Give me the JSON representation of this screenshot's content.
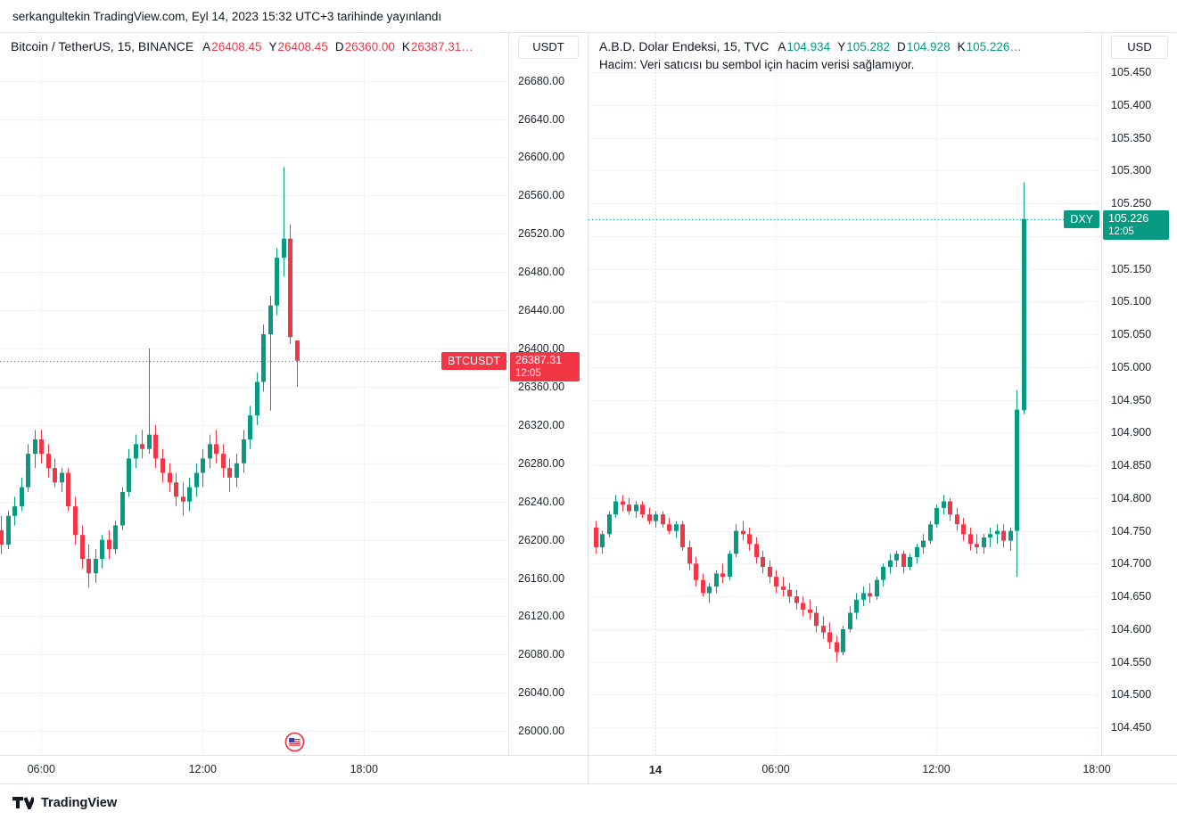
{
  "header": {
    "publish_info": "serkangultekin TradingView.com, Eyl 14, 2023 15:32 UTC+3 tarihinde yayınlandı"
  },
  "footer": {
    "brand": "TradingView"
  },
  "colors": {
    "up": "#089981",
    "down": "#f23645",
    "grid": "#f0f3fa",
    "session_grid": "#e0e3eb",
    "border": "#e0e3eb",
    "text": "#131722"
  },
  "chart_data": [
    {
      "type": "candlestick",
      "title": "Bitcoin / TetherUS, 15, BINANCE",
      "symbol": "BTCUSDT",
      "exchange": "BINANCE",
      "interval_minutes": 15,
      "currency": "USDT",
      "accent": "#f23645",
      "ohlc_legend": [
        {
          "label": "A",
          "value": "26408.45"
        },
        {
          "label": "Y",
          "value": "26408.45"
        },
        {
          "label": "D",
          "value": "26360.00"
        },
        {
          "label": "K",
          "value": "26387.31…"
        }
      ],
      "last": {
        "open": 26408.45,
        "high": 26408.45,
        "low": 26360.0,
        "close": 26387.31
      },
      "last_price": 26387.31,
      "price_label": "26387.31",
      "countdown": "12:05",
      "ylim": [
        25975,
        26730
      ],
      "y_axis": {
        "start": 26680,
        "end": 26000,
        "step": 40,
        "decimals": 2
      },
      "x_ticks": [
        {
          "label": "06:00",
          "slot": 6
        },
        {
          "label": "12:00",
          "slot": 30
        },
        {
          "label": "18:00",
          "slot": 54
        }
      ],
      "start_time": "04:30",
      "step_minutes": 15,
      "grid": true,
      "candles": [
        [
          26210,
          26225,
          26185,
          26195
        ],
        [
          26195,
          26230,
          26190,
          26225
        ],
        [
          26225,
          26245,
          26215,
          26235
        ],
        [
          26235,
          26265,
          26230,
          26255
        ],
        [
          26255,
          26300,
          26250,
          26290
        ],
        [
          26290,
          26315,
          26275,
          26305
        ],
        [
          26305,
          26315,
          26280,
          26290
        ],
        [
          26290,
          26300,
          26265,
          26275
        ],
        [
          26275,
          26285,
          26255,
          26260
        ],
        [
          26260,
          26275,
          26250,
          26270
        ],
        [
          26270,
          26275,
          26230,
          26235
        ],
        [
          26235,
          26245,
          26195,
          26205
        ],
        [
          26205,
          26215,
          26170,
          26180
        ],
        [
          26180,
          26195,
          26150,
          26165
        ],
        [
          26165,
          26190,
          26155,
          26180
        ],
        [
          26180,
          26205,
          26170,
          26200
        ],
        [
          26200,
          26210,
          26180,
          26190
        ],
        [
          26190,
          26220,
          26185,
          26215
        ],
        [
          26215,
          26255,
          26210,
          26250
        ],
        [
          26250,
          26295,
          26245,
          26285
        ],
        [
          26285,
          26310,
          26275,
          26300
        ],
        [
          26300,
          26315,
          26285,
          26295
        ],
        [
          26295,
          26400,
          26290,
          26310
        ],
        [
          26310,
          26320,
          26275,
          26285
        ],
        [
          26285,
          26295,
          26260,
          26270
        ],
        [
          26270,
          26280,
          26250,
          26260
        ],
        [
          26260,
          26270,
          26235,
          26245
        ],
        [
          26245,
          26260,
          26225,
          26240
        ],
        [
          26240,
          26265,
          26230,
          26255
        ],
        [
          26255,
          26280,
          26245,
          26270
        ],
        [
          26270,
          26295,
          26255,
          26285
        ],
        [
          26285,
          26310,
          26275,
          26300
        ],
        [
          26300,
          26315,
          26280,
          26290
        ],
        [
          26290,
          26300,
          26265,
          26275
        ],
        [
          26275,
          26285,
          26250,
          26265
        ],
        [
          26265,
          26290,
          26255,
          26280
        ],
        [
          26280,
          26315,
          26270,
          26305
        ],
        [
          26305,
          26340,
          26295,
          26330
        ],
        [
          26330,
          26375,
          26320,
          26365
        ],
        [
          26365,
          26425,
          26355,
          26415
        ],
        [
          26415,
          26455,
          26335,
          26445
        ],
        [
          26445,
          26505,
          26435,
          26495
        ],
        [
          26495,
          26590,
          26475,
          26515
        ],
        [
          26515,
          26530,
          26405,
          26412
        ],
        [
          26408.45,
          26408.45,
          26360.0,
          26387.31
        ]
      ]
    },
    {
      "type": "candlestick",
      "title": "A.B.D. Dolar Endeksi, 15, TVC",
      "symbol": "DXY",
      "exchange": "TVC",
      "interval_minutes": 15,
      "currency": "USD",
      "accent": "#089981",
      "ohlc_legend": [
        {
          "label": "A",
          "value": "104.934"
        },
        {
          "label": "Y",
          "value": "105.282"
        },
        {
          "label": "D",
          "value": "104.928"
        },
        {
          "label": "K",
          "value": "105.226…"
        }
      ],
      "volume_note": "Hacim: Veri satıcısı bu sembol için hacim verisi sağlamıyor.",
      "last": {
        "open": 104.934,
        "high": 105.282,
        "low": 104.928,
        "close": 105.226
      },
      "last_price": 105.226,
      "price_label": "105.226",
      "countdown": "12:05",
      "ylim": [
        104.408,
        105.51
      ],
      "y_axis": {
        "start": 105.45,
        "end": 104.45,
        "step": 0.05,
        "decimals": 3
      },
      "x_ticks": [
        {
          "label": "14",
          "slot": 9,
          "major": true
        },
        {
          "label": "06:00",
          "slot": 27
        },
        {
          "label": "12:00",
          "slot": 51
        },
        {
          "label": "18:00",
          "slot": 75
        }
      ],
      "start_time": "23:15 (Eyl 13)",
      "step_minutes": 15,
      "grid": true,
      "candles": [
        [
          104.755,
          104.765,
          104.715,
          104.725
        ],
        [
          104.725,
          104.75,
          104.715,
          104.745
        ],
        [
          104.745,
          104.78,
          104.74,
          104.775
        ],
        [
          104.775,
          104.805,
          104.77,
          104.795
        ],
        [
          104.795,
          104.805,
          104.78,
          104.79
        ],
        [
          104.79,
          104.8,
          104.775,
          104.78
        ],
        [
          104.78,
          104.795,
          104.77,
          104.79
        ],
        [
          104.79,
          104.795,
          104.77,
          104.775
        ],
        [
          104.775,
          104.785,
          104.76,
          104.765
        ],
        [
          104.765,
          104.78,
          104.755,
          104.775
        ],
        [
          104.775,
          104.78,
          104.755,
          104.76
        ],
        [
          104.76,
          104.77,
          104.745,
          104.75
        ],
        [
          104.75,
          104.765,
          104.74,
          104.76
        ],
        [
          104.76,
          104.765,
          104.72,
          104.725
        ],
        [
          104.725,
          104.735,
          104.69,
          104.7
        ],
        [
          104.7,
          104.71,
          104.665,
          104.675
        ],
        [
          104.675,
          104.685,
          104.65,
          104.655
        ],
        [
          104.655,
          104.67,
          104.64,
          104.665
        ],
        [
          104.665,
          104.69,
          104.655,
          104.685
        ],
        [
          104.685,
          104.7,
          104.67,
          104.68
        ],
        [
          104.68,
          104.72,
          104.675,
          104.715
        ],
        [
          104.715,
          104.76,
          104.71,
          104.75
        ],
        [
          104.75,
          104.765,
          104.735,
          104.745
        ],
        [
          104.745,
          104.755,
          104.72,
          104.73
        ],
        [
          104.73,
          104.74,
          104.7,
          104.71
        ],
        [
          104.71,
          104.72,
          104.685,
          104.695
        ],
        [
          104.695,
          104.705,
          104.67,
          104.68
        ],
        [
          104.68,
          104.69,
          104.655,
          104.665
        ],
        [
          104.665,
          104.68,
          104.65,
          104.66
        ],
        [
          104.66,
          104.67,
          104.64,
          104.65
        ],
        [
          104.65,
          104.66,
          104.63,
          104.64
        ],
        [
          104.64,
          104.65,
          104.62,
          104.63
        ],
        [
          104.63,
          104.645,
          104.615,
          104.625
        ],
        [
          104.625,
          104.635,
          104.595,
          104.605
        ],
        [
          104.605,
          104.62,
          104.585,
          104.595
        ],
        [
          104.595,
          104.61,
          104.57,
          104.58
        ],
        [
          104.58,
          104.59,
          104.55,
          104.565
        ],
        [
          104.565,
          104.605,
          104.56,
          104.6
        ],
        [
          104.6,
          104.635,
          104.595,
          104.625
        ],
        [
          104.625,
          104.655,
          104.615,
          104.645
        ],
        [
          104.645,
          104.665,
          104.635,
          104.655
        ],
        [
          104.655,
          104.67,
          104.64,
          104.65
        ],
        [
          104.65,
          104.68,
          104.645,
          104.675
        ],
        [
          104.675,
          104.7,
          104.665,
          104.695
        ],
        [
          104.695,
          104.715,
          104.685,
          104.705
        ],
        [
          104.705,
          104.72,
          104.695,
          104.715
        ],
        [
          104.715,
          104.72,
          104.685,
          104.695
        ],
        [
          104.695,
          104.715,
          104.69,
          104.71
        ],
        [
          104.71,
          104.73,
          104.7,
          104.725
        ],
        [
          104.725,
          104.745,
          104.715,
          104.735
        ],
        [
          104.735,
          104.765,
          104.73,
          104.76
        ],
        [
          104.76,
          104.79,
          104.755,
          104.785
        ],
        [
          104.785,
          104.805,
          104.775,
          104.795
        ],
        [
          104.795,
          104.8,
          104.765,
          104.775
        ],
        [
          104.775,
          104.785,
          104.75,
          104.76
        ],
        [
          104.76,
          104.77,
          104.735,
          104.745
        ],
        [
          104.745,
          104.755,
          104.72,
          104.73
        ],
        [
          104.73,
          104.745,
          104.715,
          104.725
        ],
        [
          104.725,
          104.745,
          104.715,
          104.74
        ],
        [
          104.74,
          104.755,
          104.725,
          104.745
        ],
        [
          104.745,
          104.76,
          104.73,
          104.75
        ],
        [
          104.75,
          104.76,
          104.725,
          104.735
        ],
        [
          104.735,
          104.755,
          104.72,
          104.75
        ],
        [
          104.75,
          104.965,
          104.68,
          104.935
        ],
        [
          104.934,
          105.282,
          104.928,
          105.226
        ]
      ]
    }
  ]
}
